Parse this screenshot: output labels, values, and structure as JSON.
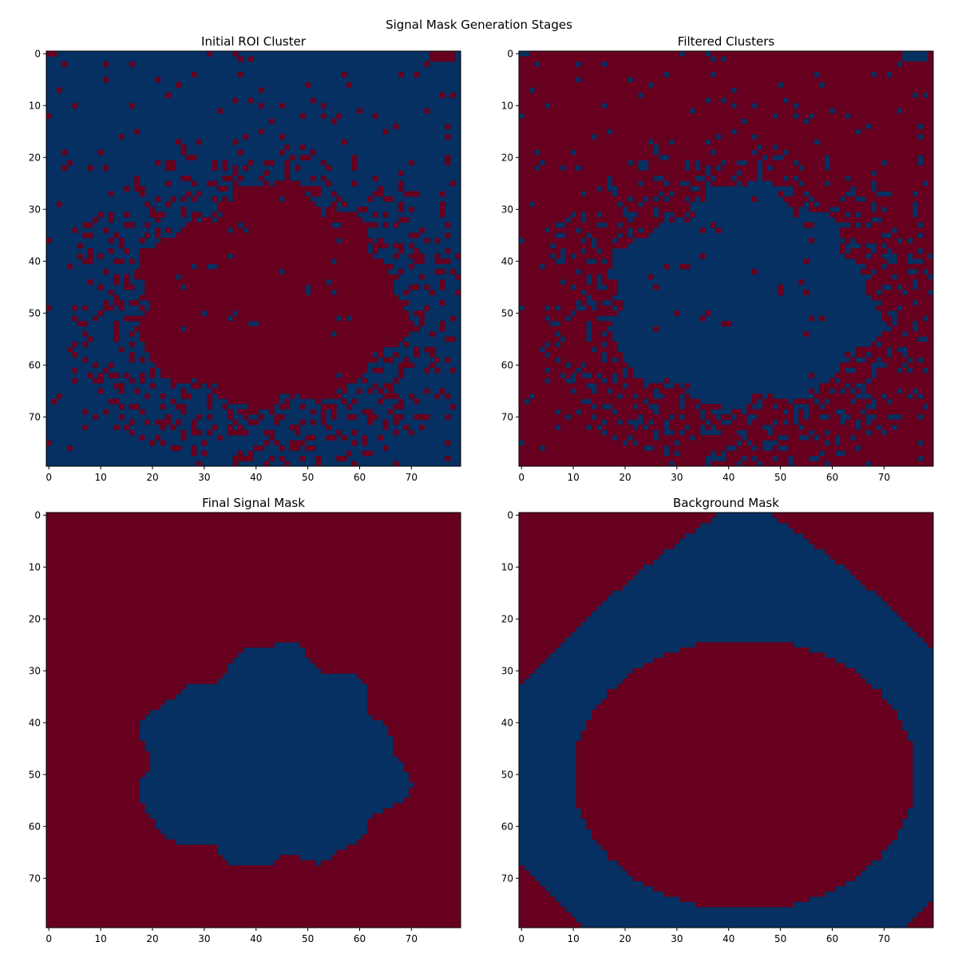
{
  "figure": {
    "suptitle": "Signal Mask Generation Stages"
  },
  "colors": {
    "high": "#67001f",
    "low": "#053061"
  },
  "chart_data": [
    {
      "type": "heatmap",
      "title": "Initial ROI Cluster",
      "grid_size": 80,
      "xlim": [
        0,
        79
      ],
      "ylim": [
        79,
        0
      ],
      "xticks": [
        0,
        10,
        20,
        30,
        40,
        50,
        60,
        70
      ],
      "yticks": [
        0,
        10,
        20,
        30,
        40,
        50,
        60,
        70
      ],
      "values": "binary mask: 1 (dark red) = roughly elliptical blob centred near column 44, row 50 spanning columns ~17-69 and rows ~24-69, surrounded by a noisy speckled halo; 0 (dark blue) elsewhere",
      "grid": false
    },
    {
      "type": "heatmap",
      "title": "Filtered Clusters",
      "grid_size": 80,
      "xlim": [
        0,
        79
      ],
      "ylim": [
        79,
        0
      ],
      "xticks": [
        0,
        10,
        20,
        30,
        40,
        50,
        60,
        70
      ],
      "yticks": [
        0,
        10,
        20,
        30,
        40,
        50,
        60,
        70
      ],
      "values": "binary mask: inverse of Initial ROI Cluster (blob and halo speckles dark blue on dark red background)",
      "grid": false
    },
    {
      "type": "heatmap",
      "title": "Final Signal Mask",
      "grid_size": 80,
      "xlim": [
        0,
        79
      ],
      "ylim": [
        79,
        0
      ],
      "xticks": [
        0,
        10,
        20,
        30,
        40,
        50,
        60,
        70
      ],
      "yticks": [
        0,
        10,
        20,
        30,
        40,
        50,
        60,
        70
      ],
      "values": "binary mask: single solid blob (dark blue) near columns 15-69, rows 24-69 with irregular edges; dark red background",
      "grid": false
    },
    {
      "type": "heatmap",
      "title": "Background Mask",
      "grid_size": 80,
      "xlim": [
        0,
        79
      ],
      "ylim": [
        79,
        0
      ],
      "xticks": [
        0,
        10,
        20,
        30,
        40,
        50,
        60,
        70
      ],
      "yticks": [
        0,
        10,
        20,
        30,
        40,
        50,
        60,
        70
      ],
      "values": "binary mask: dark blue annulus (roughly diamond/rounded ring) between inner boundary around the signal blob and outer boundary reaching the image edges; dark red inside the ring and in the four corners",
      "grid": false
    }
  ]
}
